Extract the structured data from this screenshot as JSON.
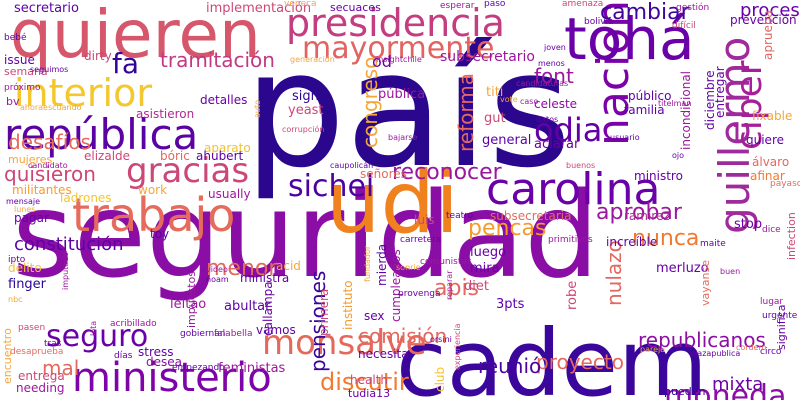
{
  "words": [
    {
      "text": "seguridad",
      "color": "#8a0da5"
    },
    {
      "text": "país",
      "color": "#2a078c"
    },
    {
      "text": "cadem",
      "color": "#3a069b"
    },
    {
      "text": "quieren",
      "color": "#d6566b"
    },
    {
      "text": "udi",
      "color": "#f0811f"
    },
    {
      "text": "carolina",
      "color": "#6a00a8"
    },
    {
      "text": "trabajo",
      "color": "#e56b5d"
    },
    {
      "text": "república",
      "color": "#5b02a3"
    },
    {
      "text": "ministerio",
      "color": "#7e03a8"
    },
    {
      "text": "nacional",
      "color": "#7b02a8"
    },
    {
      "text": "guillermo",
      "color": "#9f2a9b"
    },
    {
      "text": "tohá",
      "color": "#6a00a8"
    },
    {
      "text": "presidencia",
      "color": "#c33d80"
    },
    {
      "text": "mayormente",
      "color": "#e16462"
    },
    {
      "text": "interior",
      "color": "#f4c72f"
    },
    {
      "text": "ciper",
      "color": "#a51f99"
    },
    {
      "text": "gracias",
      "color": "#cc4778"
    },
    {
      "text": "monsalve",
      "color": "#e5685c"
    },
    {
      "text": "moneda",
      "color": "#8c0fa4"
    },
    {
      "text": "sichel",
      "color": "#4c02a1"
    },
    {
      "text": "seguro",
      "color": "#6a00a8"
    },
    {
      "text": "odia",
      "color": "#6200a6"
    },
    {
      "text": "fa",
      "color": "#330597"
    },
    {
      "text": "pensiones",
      "color": "#3a049a"
    },
    {
      "text": "discutir",
      "color": "#f3792f"
    },
    {
      "text": "republicanos",
      "color": "#8e0ea4"
    },
    {
      "text": "comisión",
      "color": "#e3685f"
    },
    {
      "text": "apis",
      "color": "#e3685f"
    },
    {
      "text": "reconocer",
      "color": "#9a169f"
    },
    {
      "text": "pencas",
      "color": "#f79a2e"
    },
    {
      "text": "quisieron",
      "color": "#cc4778"
    },
    {
      "text": "cambiar",
      "color": "#3e049c"
    },
    {
      "text": "tramitación",
      "color": "#c03a83"
    },
    {
      "text": "nunca",
      "color": "#f3782f"
    },
    {
      "text": "aprobar",
      "color": "#9c179e"
    },
    {
      "text": "proyecto",
      "color": "#e3685f"
    },
    {
      "text": "reunió",
      "color": "#4c02a1"
    },
    {
      "text": "menor",
      "color": "#e3685f"
    },
    {
      "text": "mal",
      "color": "#e3685f"
    },
    {
      "text": "desafíos",
      "color": "#e56b5d"
    },
    {
      "text": "mixta",
      "color": "#6f00a8"
    },
    {
      "text": "congreso",
      "color": "#f4a637"
    },
    {
      "text": "constitución",
      "color": "#5d01a6"
    },
    {
      "text": "reforma",
      "color": "#e3685f"
    },
    {
      "text": "font",
      "color": "#9c179e"
    },
    {
      "text": "proceso",
      "color": "#6a00a8"
    },
    {
      "text": "nulazo",
      "color": "#e3685f"
    },
    {
      "text": "subsecretario",
      "color": "#9c179e"
    },
    {
      "text": "secretario",
      "color": "#5d01a6"
    },
    {
      "text": "implementación",
      "color": "#cc4778"
    },
    {
      "text": "prevención",
      "color": "#6a00a8"
    },
    {
      "text": "aprueba",
      "color": "#e16462"
    },
    {
      "text": "diciembre",
      "color": "#5d01a6"
    },
    {
      "text": "incondicional",
      "color": "#9c179e"
    },
    {
      "text": "entregar",
      "color": "#6a00a8"
    },
    {
      "text": "fixable",
      "color": "#f4a637"
    },
    {
      "text": "público",
      "color": "#5d01a6"
    },
    {
      "text": "celeste",
      "color": "#8b0aa5"
    },
    {
      "text": "familia",
      "color": "#5d01a6"
    },
    {
      "text": "detalles",
      "color": "#6a00a8"
    },
    {
      "text": "asistieron",
      "color": "#b12a90"
    },
    {
      "text": "aparato",
      "color": "#f0c230"
    },
    {
      "text": "elizalde",
      "color": "#cc4778"
    },
    {
      "text": "bóric",
      "color": "#e5685c"
    },
    {
      "text": "ahubert",
      "color": "#5d01a6"
    },
    {
      "text": "militantes",
      "color": "#f79a2e"
    },
    {
      "text": "ladrones",
      "color": "#f3c52f"
    },
    {
      "text": "usually",
      "color": "#9c179e"
    },
    {
      "text": "work",
      "color": "#f4a637"
    },
    {
      "text": "pagar",
      "color": "#6a00a8"
    },
    {
      "text": "sign",
      "color": "#2f0596"
    },
    {
      "text": "yeast",
      "color": "#cc4778"
    },
    {
      "text": "pública",
      "color": "#9c179e"
    },
    {
      "text": "general",
      "color": "#5d01a6"
    },
    {
      "text": "aclarar",
      "color": "#6a00a8"
    },
    {
      "text": "quiere",
      "color": "#5d01a6"
    },
    {
      "text": "álvaro",
      "color": "#e3685f"
    },
    {
      "text": "afinar",
      "color": "#f3782f"
    },
    {
      "text": "ministro",
      "color": "#6a00a8"
    },
    {
      "text": "ramirez",
      "color": "#b12a90"
    },
    {
      "text": "subsecretaria",
      "color": "#e56b5d"
    },
    {
      "text": "ministra",
      "color": "#5d01a6"
    },
    {
      "text": "luis",
      "color": "#cc4778"
    },
    {
      "text": "stop",
      "color": "#6a00a8"
    },
    {
      "text": "increíble",
      "color": "#5d01a6"
    },
    {
      "text": "luego",
      "color": "#6a00a8"
    },
    {
      "text": "mira",
      "color": "#6a00a8"
    },
    {
      "text": "diet",
      "color": "#cc4778"
    },
    {
      "text": "3pts",
      "color": "#5d01a6"
    },
    {
      "text": "merluzo",
      "color": "#6a00a8"
    },
    {
      "text": "robe",
      "color": "#cc4778"
    },
    {
      "text": "finger",
      "color": "#2a0593"
    },
    {
      "text": "leitao",
      "color": "#9c179e"
    },
    {
      "text": "abultar",
      "color": "#5d01a6"
    },
    {
      "text": "vamos",
      "color": "#5d01a6"
    },
    {
      "text": "feministas",
      "color": "#9c179e"
    },
    {
      "text": "desea",
      "color": "#8b0aa5"
    },
    {
      "text": "stress",
      "color": "#5d01a6"
    },
    {
      "text": "entrega",
      "color": "#cc4778"
    },
    {
      "text": "needing",
      "color": "#9c179e"
    },
    {
      "text": "encuentro",
      "color": "#f4a637"
    },
    {
      "text": "health",
      "color": "#cc4778"
    },
    {
      "text": "tudia13",
      "color": "#6a00a8"
    },
    {
      "text": "pueden",
      "color": "#3a049a"
    },
    {
      "text": "necesita",
      "color": "#6a00a8"
    },
    {
      "text": "club",
      "color": "#f3c52f"
    },
    {
      "text": "primera",
      "color": "#cc4778"
    },
    {
      "text": "callampa",
      "color": "#6a00a8"
    },
    {
      "text": "instituto",
      "color": "#f79a2e"
    },
    {
      "text": "cumpleaños",
      "color": "#9c179e"
    },
    {
      "text": "mierda",
      "color": "#5d01a6"
    },
    {
      "text": "sex",
      "color": "#6a00a8"
    },
    {
      "text": "od",
      "color": "#6a00a8"
    },
    {
      "text": "gut",
      "color": "#cc4778"
    },
    {
      "text": "titi",
      "color": "#f4a637"
    },
    {
      "text": "señores",
      "color": "#e56b5d"
    },
    {
      "text": "acid",
      "color": "#f4a637"
    },
    {
      "text": "toy",
      "color": "#5d01a6"
    },
    {
      "text": "dirty",
      "color": "#cc4778"
    },
    {
      "text": "issue",
      "color": "#5d01a6"
    },
    {
      "text": "semana",
      "color": "#cc4778"
    },
    {
      "text": "bv",
      "color": "#9c179e"
    },
    {
      "text": "mujeres",
      "color": "#f4a637"
    },
    {
      "text": "delito",
      "color": "#f3c52f"
    },
    {
      "text": "secuaces",
      "color": "#6a00a8"
    },
    {
      "text": "acribillado",
      "color": "#9c179e"
    },
    {
      "text": "desaprueba",
      "color": "#e56b5d"
    },
    {
      "text": "circo",
      "color": "#6a00a8"
    },
    {
      "text": "urgente",
      "color": "#5d01a6"
    },
    {
      "text": "lugar",
      "color": "#9c179e"
    },
    {
      "text": "vayanse",
      "color": "#e56b5d"
    },
    {
      "text": "significa",
      "color": "#6a00a8"
    },
    {
      "text": "infection",
      "color": "#cc4778"
    },
    {
      "text": "dice",
      "color": "#9c179e"
    },
    {
      "text": "payaso",
      "color": "#e56b5d"
    },
    {
      "text": "maite",
      "color": "#6a00a8"
    },
    {
      "text": "primitivos",
      "color": "#9c179e"
    },
    {
      "text": "teatro",
      "color": "#5d01a6"
    },
    {
      "text": "carretera",
      "color": "#6a00a8"
    },
    {
      "text": "comunistas",
      "color": "#9c179e"
    },
    {
      "text": "provenga",
      "color": "#6a00a8"
    },
    {
      "text": "gobiernan",
      "color": "#5d01a6"
    },
    {
      "text": "falabella",
      "color": "#9c179e"
    },
    {
      "text": "empezando",
      "color": "#5d01a6"
    },
    {
      "text": "días",
      "color": "#6a00a8"
    },
    {
      "text": "pasen",
      "color": "#cc4778"
    },
    {
      "text": "tras",
      "color": "#6a00a8"
    },
    {
      "text": "amenaza",
      "color": "#cc4778"
    },
    {
      "text": "paso",
      "color": "#5d01a6"
    },
    {
      "text": "esperar",
      "color": "#9c179e"
    },
    {
      "text": "veneca",
      "color": "#f4a637"
    },
    {
      "text": "gestión",
      "color": "#9c179e"
    },
    {
      "text": "difícil",
      "color": "#cc4778"
    },
    {
      "text": "bolivia",
      "color": "#6a00a8"
    },
    {
      "text": "bebé",
      "color": "#5d01a6"
    },
    {
      "text": "seguimos",
      "color": "#6a00a8"
    },
    {
      "text": "próximo",
      "color": "#9c179e"
    },
    {
      "text": "generación",
      "color": "#f4a637"
    },
    {
      "text": "insightchile",
      "color": "#9c179e"
    },
    {
      "text": "menos",
      "color": "#5d01a6"
    },
    {
      "text": "joven",
      "color": "#6a00a8"
    },
    {
      "text": "candidaturas",
      "color": "#9c179e"
    },
    {
      "text": "ahoraescuando",
      "color": "#f4a637"
    },
    {
      "text": "caso",
      "color": "#9c179e"
    },
    {
      "text": "corrupción",
      "color": "#cc4778"
    },
    {
      "text": "bajarse",
      "color": "#9c179e"
    },
    {
      "text": "datos",
      "color": "#6a00a8"
    },
    {
      "text": "usuario",
      "color": "#5d01a6"
    },
    {
      "text": "titelman",
      "color": "#9c179e"
    },
    {
      "text": "ojo",
      "color": "#6a00a8"
    },
    {
      "text": "caupolicán",
      "color": "#5d01a6"
    },
    {
      "text": "buenos",
      "color": "#cc4778"
    },
    {
      "text": "candidato",
      "color": "#9c179e"
    },
    {
      "text": "mensaje",
      "color": "#6a00a8"
    },
    {
      "text": "lunes",
      "color": "#f4a637"
    },
    {
      "text": "auto",
      "color": "#f4a637"
    },
    {
      "text": "video",
      "color": "#9c179e"
    },
    {
      "text": "noam",
      "color": "#6a00a8"
    },
    {
      "text": "impuestos",
      "color": "#9c179e"
    },
    {
      "text": "fundador",
      "color": "#f4a637"
    },
    {
      "text": "sonrie",
      "color": "#f4a637"
    },
    {
      "text": "orsini",
      "color": "#6a00a8"
    },
    {
      "text": "reparar",
      "color": "#9c179e"
    },
    {
      "text": "experiencia",
      "color": "#cc4778"
    },
    {
      "text": "pareja",
      "color": "#f4a637"
    },
    {
      "text": "plazapublica",
      "color": "#6a00a8"
    },
    {
      "text": "cordero",
      "color": "#e56b5d"
    },
    {
      "text": "imputado",
      "color": "#9c179e"
    },
    {
      "text": "lota",
      "color": "#9c179e"
    },
    {
      "text": "nbc",
      "color": "#f4a637"
    },
    {
      "text": "ipto",
      "color": "#6a00a8"
    },
    {
      "text": "buen",
      "color": "#9c179e"
    },
    {
      "text": "vote",
      "color": "#f4a637"
    }
  ]
}
